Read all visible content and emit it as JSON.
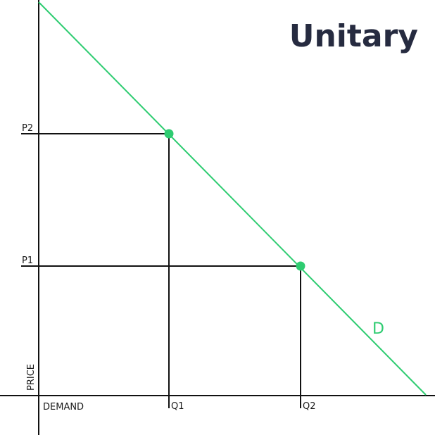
{
  "title": "Unitary",
  "colors": {
    "curve": "#2ecc71",
    "axes": "#111111",
    "title": "#262b40"
  },
  "axes": {
    "y_label": "PRICE",
    "x_label": "DEMAND"
  },
  "price_levels": [
    "P2",
    "P1"
  ],
  "quantity_levels": [
    "Q1",
    "Q2"
  ],
  "curve_label": "D",
  "points": [
    {
      "price": "P2",
      "quantity": "Q1"
    },
    {
      "price": "P1",
      "quantity": "Q2"
    }
  ]
}
